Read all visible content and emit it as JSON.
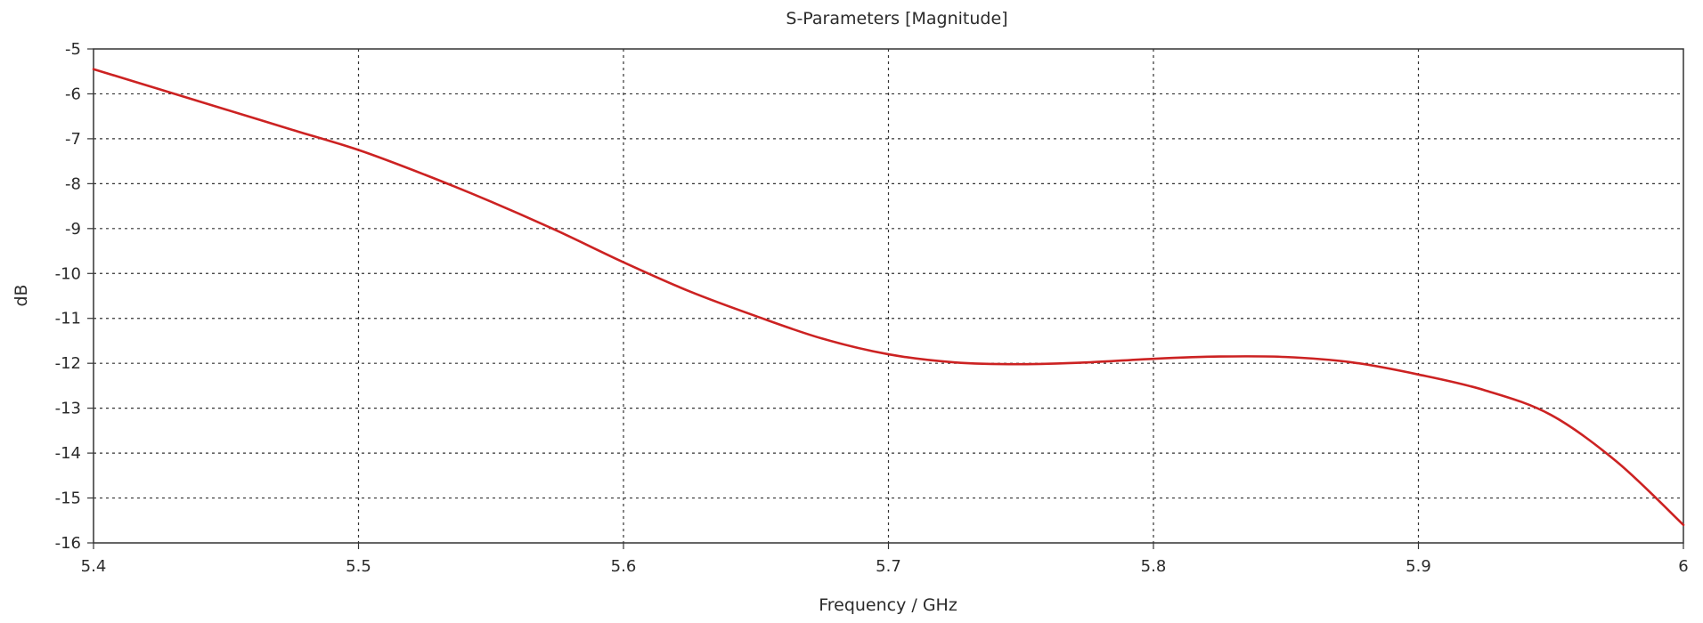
{
  "chart_data": {
    "type": "line",
    "title": "S-Parameters [Magnitude]",
    "xlabel": "Frequency / GHz",
    "ylabel": "dB",
    "xlim": [
      5.4,
      6.0
    ],
    "ylim": [
      -16,
      -5
    ],
    "xticks": [
      5.4,
      5.5,
      5.6,
      5.7,
      5.8,
      5.9,
      6.0
    ],
    "xtick_labels": [
      "5.4",
      "5.5",
      "5.6",
      "5.7",
      "5.8",
      "5.9",
      "6"
    ],
    "yticks": [
      -5,
      -6,
      -7,
      -8,
      -9,
      -10,
      -11,
      -12,
      -13,
      -14,
      -15,
      -16
    ],
    "ytick_labels": [
      "-5",
      "-6",
      "-7",
      "-8",
      "-9",
      "-10",
      "-11",
      "-12",
      "-13",
      "-14",
      "-15",
      "-16"
    ],
    "grid": true,
    "legend": "none",
    "series": [
      {
        "color": "#cc2222",
        "x": [
          5.4,
          5.425,
          5.45,
          5.475,
          5.5,
          5.525,
          5.55,
          5.575,
          5.6,
          5.625,
          5.65,
          5.675,
          5.7,
          5.725,
          5.75,
          5.775,
          5.8,
          5.825,
          5.85,
          5.875,
          5.9,
          5.925,
          5.95,
          5.975,
          6.0
        ],
        "y": [
          -5.45,
          -5.9,
          -6.35,
          -6.8,
          -7.25,
          -7.8,
          -8.4,
          -9.05,
          -9.75,
          -10.4,
          -10.95,
          -11.45,
          -11.8,
          -11.98,
          -12.02,
          -11.98,
          -11.9,
          -11.85,
          -11.86,
          -11.98,
          -12.25,
          -12.6,
          -13.15,
          -14.2,
          -15.6
        ]
      }
    ]
  }
}
